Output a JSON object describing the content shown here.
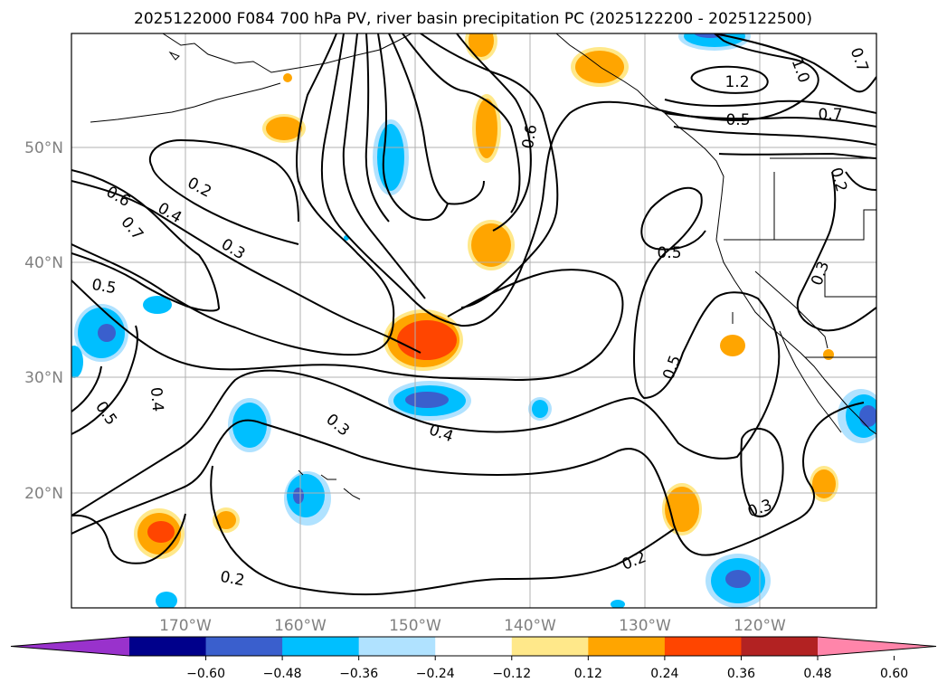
{
  "title": "2025122000 F084 700 hPa PV, river basin precipitation PC (2025122200 - 2025122500)",
  "lon_ticks": [
    "170°W",
    "160°W",
    "150°W",
    "140°W",
    "130°W",
    "120°W"
  ],
  "lat_ticks": [
    "50°N",
    "40°N",
    "30°N",
    "20°N"
  ],
  "colorbar": {
    "ticks": [
      "−0.60",
      "−0.48",
      "−0.36",
      "−0.24",
      "−0.12",
      "0.12",
      "0.24",
      "0.36",
      "0.48",
      "0.60"
    ],
    "colors": [
      "#9932cc",
      "#00008b",
      "#3a5fcd",
      "#00bfff",
      "#b0e2ff",
      "#ffffff",
      "#ffe88a",
      "#ffa500",
      "#ff4500",
      "#b22222",
      "#ff85aa"
    ]
  },
  "contour_labels": [
    "0.2",
    "0.3",
    "0.4",
    "0.5",
    "0.6",
    "0.7",
    "1.0",
    "1.2"
  ],
  "map_labels": [
    {
      "text": "0.6"
    },
    {
      "text": "0.4"
    },
    {
      "text": "0.7"
    },
    {
      "text": "0.2"
    },
    {
      "text": "0.3"
    },
    {
      "text": "0.5"
    },
    {
      "text": "0.4"
    },
    {
      "text": "0.5"
    },
    {
      "text": "0.3"
    },
    {
      "text": "0.4"
    },
    {
      "text": "0.2"
    },
    {
      "text": "0.6"
    },
    {
      "text": "0.5"
    },
    {
      "text": "0.5"
    },
    {
      "text": "0.3"
    },
    {
      "text": "0.2"
    },
    {
      "text": "1.2"
    },
    {
      "text": "1.0"
    },
    {
      "text": "0.5"
    },
    {
      "text": "0.7"
    },
    {
      "text": "0.2"
    },
    {
      "text": "0.3"
    },
    {
      "text": "0.7"
    }
  ]
}
